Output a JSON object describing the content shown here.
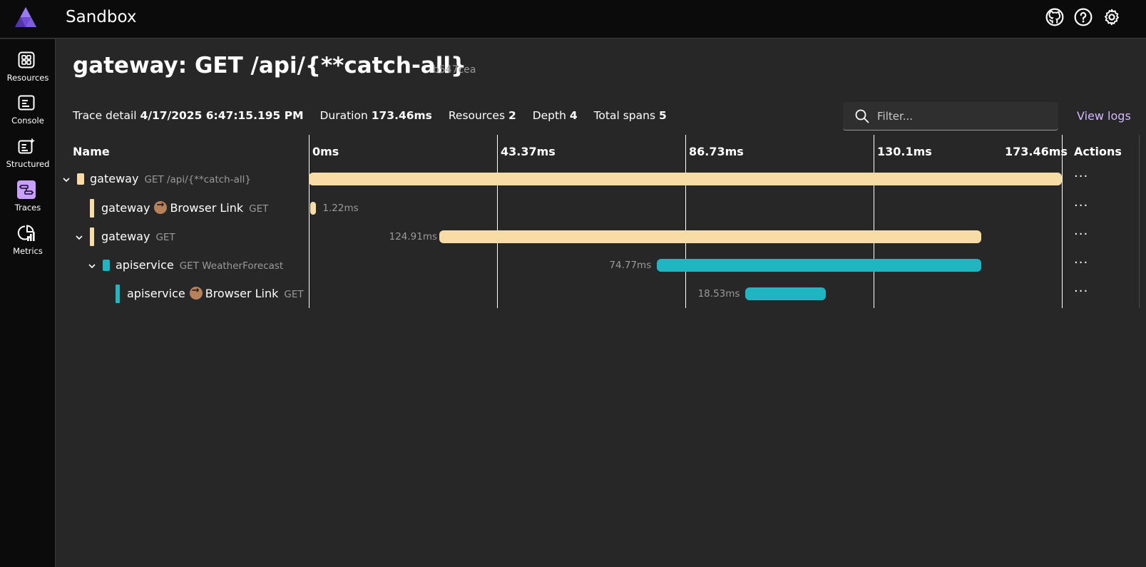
{
  "app": {
    "title": "Sandbox",
    "logo_icon": "aspire-logo-icon",
    "top_icons": [
      "github-icon",
      "help-icon",
      "settings-icon"
    ]
  },
  "sidebar": {
    "items": [
      {
        "label": "Resources",
        "icon": "resources-icon",
        "active": false
      },
      {
        "label": "Console",
        "icon": "console-icon",
        "active": false
      },
      {
        "label": "Structured",
        "icon": "structured-icon",
        "active": false
      },
      {
        "label": "Traces",
        "icon": "traces-icon",
        "active": true
      },
      {
        "label": "Metrics",
        "icon": "metrics-icon",
        "active": false
      }
    ]
  },
  "page": {
    "title": "gateway: GET /api/{**catch-all}",
    "trace_id_short": "b547cea"
  },
  "summary": {
    "trace_detail_label": "Trace detail",
    "trace_detail_value": "4/17/2025 6:47:15.195 PM",
    "duration_label": "Duration",
    "duration_value": "173.46ms",
    "resources_label": "Resources",
    "resources_value": "2",
    "depth_label": "Depth",
    "depth_value": "4",
    "total_spans_label": "Total spans",
    "total_spans_value": "5"
  },
  "filter": {
    "placeholder": "Filter...",
    "value": ""
  },
  "view_logs": "View logs",
  "columns": {
    "name": "Name",
    "actions": "Actions",
    "ticks": [
      "0ms",
      "43.37ms",
      "86.73ms",
      "130.1ms",
      "173.46ms"
    ]
  },
  "colors": {
    "gateway": "#f7dca5",
    "apiservice": "#1fb5c1",
    "accent": "#d4b7ff"
  },
  "spans": [
    {
      "service": "gateway",
      "operation": "GET /api/{**catch-all}",
      "peer": "",
      "duration": "",
      "start_ms": 0,
      "duration_ms": 173.46,
      "color": "gateway",
      "collapsible": true
    },
    {
      "service": "gateway",
      "operation": "GET",
      "peer": "Browser Link",
      "duration": "1.22ms",
      "start_ms": 0.4,
      "duration_ms": 1.22,
      "color": "gateway",
      "collapsible": false
    },
    {
      "service": "gateway",
      "operation": "GET",
      "peer": "",
      "duration": "124.91ms",
      "start_ms": 30.0,
      "duration_ms": 124.91,
      "color": "gateway",
      "collapsible": true
    },
    {
      "service": "apiservice",
      "operation": "GET WeatherForecast",
      "peer": "",
      "duration": "74.77ms",
      "start_ms": 80.2,
      "duration_ms": 74.77,
      "color": "apiservice",
      "collapsible": true
    },
    {
      "service": "apiservice",
      "operation": "GET",
      "peer": "Browser Link",
      "duration": "18.53ms",
      "start_ms": 100.6,
      "duration_ms": 18.53,
      "color": "apiservice",
      "collapsible": false
    }
  ],
  "row_action": "···"
}
